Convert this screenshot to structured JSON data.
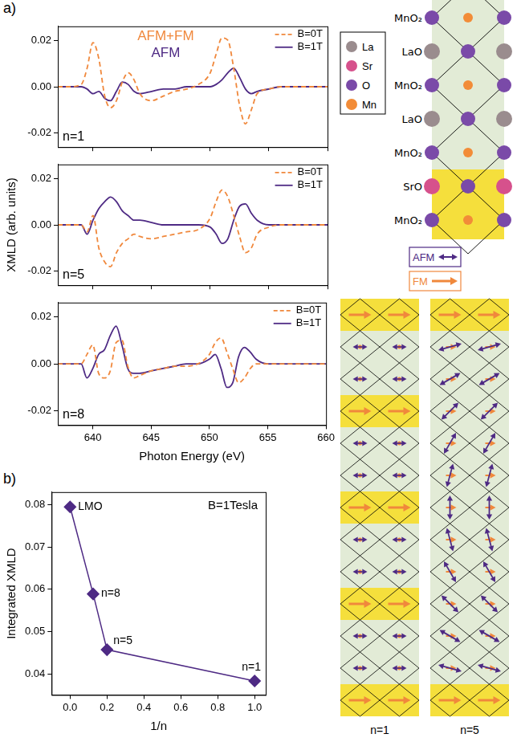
{
  "panel_labels": [
    "a)",
    "b)"
  ],
  "chart_data": [
    {
      "type": "line",
      "x": [
        637,
        638,
        639,
        639.5,
        640,
        640.5,
        641,
        641.5,
        642,
        642.5,
        643,
        643.5,
        644,
        645,
        646,
        647,
        648,
        649,
        650,
        650.5,
        651,
        651.5,
        652,
        652.5,
        653,
        653.5,
        654,
        655,
        656,
        658,
        660
      ],
      "series": [
        {
          "name": "B=0T",
          "color": "#f0883c",
          "line_style": "dashed",
          "values": [
            0,
            0,
            0.001,
            0.008,
            0.019,
            0.012,
            -0.004,
            -0.009,
            -0.006,
            0.002,
            0.006,
            0.003,
            -0.003,
            -0.006,
            -0.004,
            -0.002,
            -0.001,
            0.001,
            0.006,
            0.014,
            0.021,
            0.02,
            0.008,
            -0.008,
            -0.016,
            -0.01,
            -0.003,
            -0.001,
            0,
            0,
            0
          ]
        },
        {
          "name": "B=1T",
          "color": "#4e2a84",
          "line_style": "solid",
          "values": [
            0,
            0,
            0,
            -0.001,
            -0.003,
            -0.002,
            -0.005,
            -0.006,
            -0.002,
            0.002,
            0.001,
            -0.002,
            -0.003,
            -0.002,
            -0.001,
            -0.001,
            0,
            0,
            0,
            0.001,
            0.003,
            0.006,
            0.008,
            0.004,
            -0.001,
            -0.003,
            -0.002,
            -0.001,
            0,
            0,
            0
          ]
        }
      ],
      "xlim": [
        637,
        660
      ],
      "xticks": [
        640,
        645,
        650,
        655,
        660
      ],
      "ylim": [
        -0.026,
        0.026
      ],
      "yticks": [
        -0.02,
        {
          "value": 0,
          "label": "0.00"
        },
        0.02
      ],
      "tick_labels": "y",
      "legend": "upper right",
      "grid": false,
      "annotations": [
        {
          "text": "AFM+FM",
          "color": "#f0883c",
          "position": "top"
        },
        {
          "text": "AFM",
          "color": "#4e2a84",
          "position": "top"
        },
        {
          "text": "n=1",
          "position": "bottom left"
        }
      ]
    },
    {
      "type": "line",
      "x": [
        637,
        638,
        639,
        639.5,
        640,
        640.5,
        641,
        641.5,
        642,
        642.5,
        643,
        643.5,
        644,
        645,
        646,
        647,
        648,
        649,
        650,
        650.5,
        651,
        651.5,
        652,
        652.5,
        653,
        653.5,
        654,
        655,
        656,
        658,
        660
      ],
      "series": [
        {
          "name": "B=0T",
          "color": "#f0883c",
          "line_style": "dashed",
          "values": [
            0,
            0,
            0,
            -0.003,
            0.004,
            -0.01,
            -0.016,
            -0.018,
            -0.012,
            -0.008,
            -0.006,
            -0.004,
            -0.005,
            -0.006,
            -0.005,
            -0.004,
            -0.003,
            -0.002,
            0.003,
            0.01,
            0.015,
            0.012,
            0.004,
            -0.005,
            -0.012,
            -0.01,
            -0.004,
            -0.001,
            0,
            0,
            0
          ]
        },
        {
          "name": "B=1T",
          "color": "#4e2a84",
          "line_style": "solid",
          "values": [
            0,
            0,
            0,
            -0.004,
            0.002,
            0.007,
            0.01,
            0.012,
            0.01,
            0.006,
            0.004,
            0.002,
            0.002,
            0.001,
            0,
            0,
            0,
            0,
            -0.001,
            -0.004,
            -0.008,
            -0.006,
            0.002,
            0.008,
            0.009,
            0.005,
            0.002,
            0,
            0,
            0,
            0
          ]
        }
      ],
      "xlim": [
        637,
        660
      ],
      "xticks": [
        640,
        645,
        650,
        655,
        660
      ],
      "ylim": [
        -0.026,
        0.026
      ],
      "yticks": [
        -0.02,
        {
          "value": 0,
          "label": "0.00"
        },
        0.02
      ],
      "ylabel": "XMLD (arb. units)",
      "tick_labels": "y",
      "legend": "upper right",
      "grid": false,
      "annotations": [
        {
          "text": "n=5",
          "position": "bottom left"
        }
      ]
    },
    {
      "type": "line",
      "x": [
        637,
        638,
        639,
        639.5,
        640,
        640.5,
        641,
        641.5,
        642,
        642.5,
        643,
        643.5,
        644,
        645,
        646,
        647,
        648,
        649,
        650,
        650.5,
        651,
        651.5,
        652,
        652.5,
        653,
        653.5,
        654,
        655,
        656,
        658,
        660
      ],
      "series": [
        {
          "name": "B=0T",
          "color": "#f0883c",
          "line_style": "dashed",
          "values": [
            0,
            0,
            0,
            0.004,
            0.008,
            -0.004,
            -0.006,
            -0.003,
            0.009,
            0.01,
            -0.001,
            -0.006,
            -0.005,
            -0.003,
            -0.002,
            -0.001,
            -0.001,
            0,
            0.004,
            0.009,
            0.011,
            0.005,
            -0.002,
            -0.008,
            -0.006,
            -0.002,
            0,
            0,
            0,
            0,
            0
          ]
        },
        {
          "name": "B=1T",
          "color": "#4e2a84",
          "line_style": "solid",
          "values": [
            0,
            0,
            0,
            -0.006,
            -0.002,
            0.004,
            0.006,
            0.012,
            0.016,
            0.008,
            -0.002,
            -0.004,
            -0.004,
            -0.003,
            -0.002,
            -0.001,
            0,
            0,
            0.002,
            0.004,
            -0.002,
            -0.01,
            -0.008,
            0.003,
            0.007,
            0.005,
            0.002,
            0,
            0,
            0,
            0
          ]
        }
      ],
      "xlim": [
        637,
        660
      ],
      "xticks": [
        640,
        645,
        650,
        655,
        660
      ],
      "ylim": [
        -0.026,
        0.026
      ],
      "yticks": [
        -0.02,
        {
          "value": 0,
          "label": "0.00"
        },
        0.02
      ],
      "xlabel": "Photon Energy (eV)",
      "legend": "upper right",
      "grid": false,
      "annotations": [
        {
          "text": "n=8",
          "position": "bottom left"
        }
      ]
    },
    {
      "type": "line",
      "x": [
        0,
        0.125,
        0.2,
        1
      ],
      "values": [
        0.0795,
        0.0589,
        0.0457,
        0.0383
      ],
      "point_labels": [
        "LMO",
        "n=8",
        "n=5",
        "n=1"
      ],
      "color": "#4e2a84",
      "marker": "diamond",
      "xlim": [
        -0.1,
        1.06
      ],
      "xticks": [
        {
          "value": 0,
          "label": "0.0"
        },
        0.2,
        0.4,
        0.6,
        0.8,
        {
          "value": 1,
          "label": "1.0"
        }
      ],
      "ylim": [
        0.035,
        0.083
      ],
      "yticks": [
        0.04,
        0.05,
        0.06,
        0.07,
        0.08
      ],
      "xlabel": "1/n",
      "ylabel": "Integrated XMLD",
      "grid": false,
      "annotations": [
        {
          "text": "B=1Tesla",
          "position": "top right"
        }
      ]
    }
  ],
  "structure": {
    "layers": [
      "MnO₂",
      "LaO",
      "MnO₂",
      "LaO",
      "MnO₂",
      "SrO",
      "MnO₂"
    ],
    "elements": [
      {
        "name": "La",
        "color": "#9a8c8e"
      },
      {
        "name": "Sr",
        "color": "#d6518c"
      },
      {
        "name": "O",
        "color": "#7a4aa8"
      },
      {
        "name": "Mn",
        "color": "#f28c38"
      }
    ]
  },
  "spin_legend": [
    {
      "name": "AFM",
      "color": "#4e2a84"
    },
    {
      "name": "FM",
      "color": "#f0883c"
    }
  ],
  "spin_panels": [
    "n=1",
    "n=5"
  ]
}
